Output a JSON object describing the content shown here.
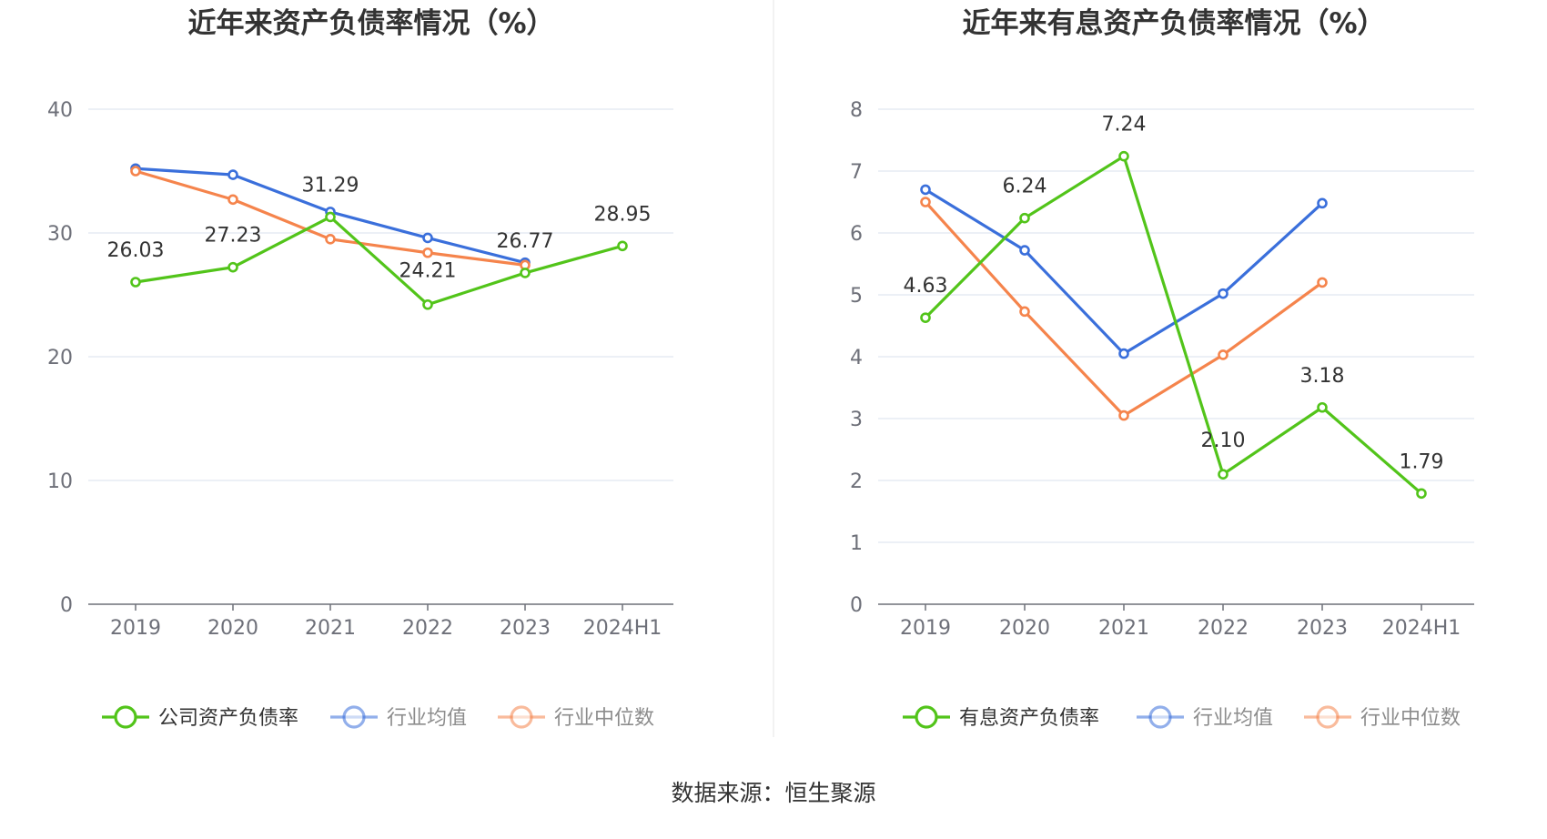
{
  "source_label": "数据来源：恒生聚源",
  "chart_data": [
    {
      "type": "line",
      "title": "近年来资产负债率情况（%）",
      "categories": [
        "2019",
        "2020",
        "2021",
        "2022",
        "2023",
        "2024H1"
      ],
      "ylim": [
        0,
        40
      ],
      "yticks": [
        0,
        10,
        20,
        30,
        40
      ],
      "series": [
        {
          "name": "公司资产负债率",
          "color": "#52c41a",
          "values": [
            26.03,
            27.23,
            31.29,
            24.21,
            26.77,
            28.95
          ],
          "labels": [
            "26.03",
            "27.23",
            "31.29",
            "24.21",
            "26.77",
            "28.95"
          ]
        },
        {
          "name": "行业均值",
          "color": "#3a6fdb",
          "values": [
            35.2,
            34.7,
            31.7,
            29.6,
            27.6,
            null
          ]
        },
        {
          "name": "行业中位数",
          "color": "#f5844c",
          "values": [
            35.0,
            32.7,
            29.5,
            28.4,
            27.4,
            null
          ]
        }
      ]
    },
    {
      "type": "line",
      "title": "近年来有息资产负债率情况（%）",
      "categories": [
        "2019",
        "2020",
        "2021",
        "2022",
        "2023",
        "2024H1"
      ],
      "ylim": [
        0,
        8
      ],
      "yticks": [
        0,
        1,
        2,
        3,
        4,
        5,
        6,
        7,
        8
      ],
      "series": [
        {
          "name": "有息资产负债率",
          "color": "#52c41a",
          "values": [
            4.63,
            6.24,
            7.24,
            2.1,
            3.18,
            1.79
          ],
          "labels": [
            "4.63",
            "6.24",
            "7.24",
            "2.10",
            "3.18",
            "1.79"
          ]
        },
        {
          "name": "行业均值",
          "color": "#3a6fdb",
          "values": [
            6.7,
            5.72,
            4.05,
            5.02,
            6.48,
            null
          ]
        },
        {
          "name": "行业中位数",
          "color": "#f5844c",
          "values": [
            6.5,
            4.73,
            3.05,
            4.03,
            5.2,
            null
          ]
        }
      ]
    }
  ]
}
